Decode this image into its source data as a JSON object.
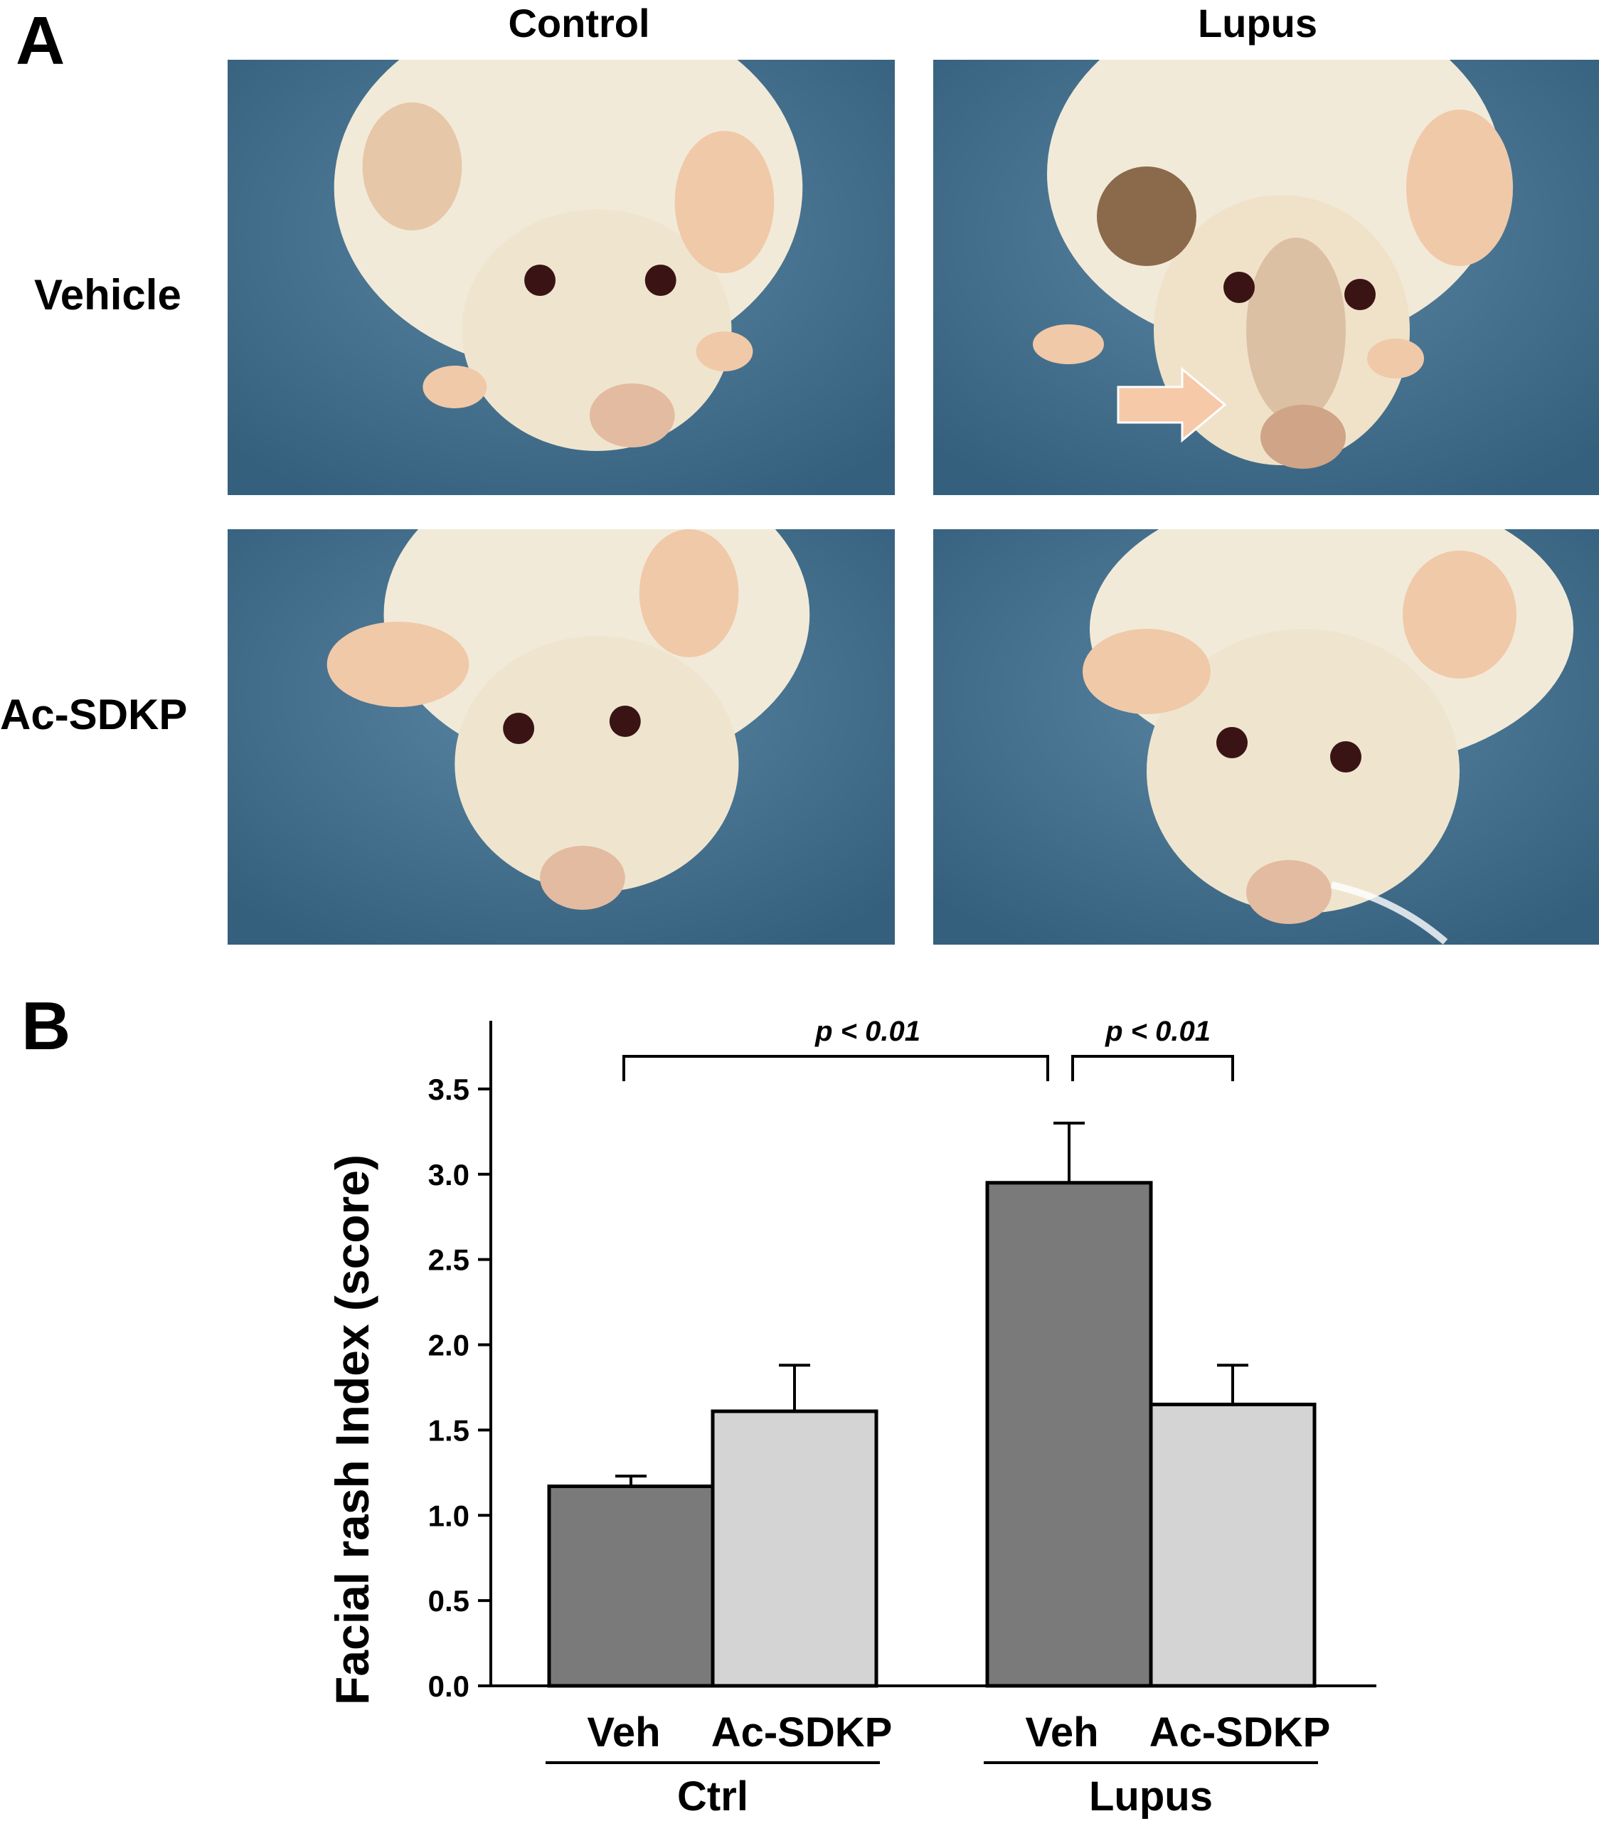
{
  "panel_a": {
    "letter": "A",
    "columns": [
      "Control",
      "Lupus"
    ],
    "rows": [
      "Vehicle",
      "Ac-SDKP"
    ],
    "photos": [
      {
        "name": "photo-control-vehicle"
      },
      {
        "name": "photo-lupus-vehicle",
        "has_arrow": true
      },
      {
        "name": "photo-control-acsdkp"
      },
      {
        "name": "photo-lupus-acsdkp"
      }
    ],
    "colors": {
      "background": "#3f6f8c",
      "fur": "#f2ead8",
      "eye": "#3a1414",
      "arrow": "#f6c9a8"
    }
  },
  "panel_b": {
    "letter": "B",
    "chart_data": {
      "type": "bar",
      "ylabel": "Facial rash Index (score)",
      "ylim": [
        0,
        3.9
      ],
      "yticks": [
        "0.0",
        "0.5",
        "1.0",
        "1.5",
        "2.0",
        "2.5",
        "3.0",
        "3.5"
      ],
      "ytick_values": [
        0,
        0.5,
        1.0,
        1.5,
        2.0,
        2.5,
        3.0,
        3.5
      ],
      "groups": [
        {
          "label": "Ctrl",
          "bars": [
            {
              "label": "Veh",
              "value": 1.17,
              "error": 0.06,
              "color": "#7a7a7a"
            },
            {
              "label": "Ac-SDKP",
              "value": 1.61,
              "error": 0.27,
              "color": "#d4d4d4"
            }
          ]
        },
        {
          "label": "Lupus",
          "bars": [
            {
              "label": "Veh",
              "value": 2.95,
              "error": 0.35,
              "color": "#7a7a7a"
            },
            {
              "label": "Ac-SDKP",
              "value": 1.65,
              "error": 0.23,
              "color": "#d4d4d4"
            }
          ]
        }
      ],
      "significance": [
        {
          "label": "p < 0.01",
          "from": [
            0,
            0
          ],
          "to": [
            1,
            0
          ]
        },
        {
          "label": "p < 0.01",
          "from": [
            1,
            0
          ],
          "to": [
            1,
            1
          ]
        }
      ],
      "grid": false,
      "legend": "none"
    }
  }
}
